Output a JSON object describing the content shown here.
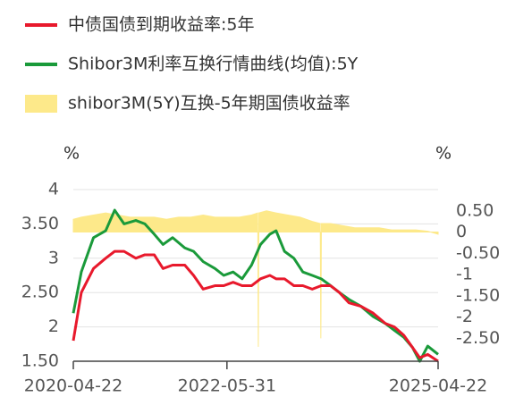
{
  "chart_data": {
    "type": "line",
    "xlim": [
      "2020-04-22",
      "2025-04-22"
    ],
    "xticks": [
      "2020-04-22",
      "2022-05-31",
      "2025-04-22"
    ],
    "ylabel": "%",
    "y2label": "%",
    "ylim": [
      1.5,
      4
    ],
    "yticks": [
      4,
      {
        "value": 3.5,
        "label": "3.50"
      },
      3,
      {
        "value": 2.5,
        "label": "2.50"
      },
      2,
      {
        "value": 1.5,
        "label": "1.50"
      }
    ],
    "y2lim": [
      -3.04,
      1.0
    ],
    "y2ticks": [
      {
        "value": 0.5,
        "label": "0.50"
      },
      0,
      {
        "value": -0.5,
        "label": "-0.50"
      },
      -1,
      {
        "value": -1.5,
        "label": "-1.50"
      },
      -2,
      {
        "value": -2.5,
        "label": "-2.50"
      }
    ],
    "grid": true,
    "series": [
      {
        "name": "shibor3M(5Y)互换-5年期国债收益率",
        "color": "#fde98a",
        "kind": "area",
        "axis": "y2",
        "x": [
          "2020-04-22",
          "2020-06-01",
          "2020-08-01",
          "2020-10-01",
          "2020-12-01",
          "2021-02-01",
          "2021-04-01",
          "2021-06-01",
          "2021-08-01",
          "2021-10-01",
          "2021-12-01",
          "2022-02-01",
          "2022-04-01",
          "2022-06-01",
          "2022-08-01",
          "2022-10-01",
          "2022-11-01",
          "2022-11-04",
          "2022-11-07",
          "2022-12-15",
          "2023-02-01",
          "2023-04-01",
          "2023-06-01",
          "2023-08-01",
          "2023-09-10",
          "2023-09-13",
          "2023-09-16",
          "2023-11-01",
          "2024-01-01",
          "2024-03-01",
          "2024-05-01",
          "2024-07-01",
          "2024-09-01",
          "2024-11-01",
          "2025-01-01",
          "2025-03-01",
          "2025-04-22"
        ],
        "values": [
          0.3,
          0.35,
          0.4,
          0.45,
          0.4,
          0.35,
          0.35,
          0.35,
          0.3,
          0.35,
          0.35,
          0.4,
          0.35,
          0.35,
          0.35,
          0.4,
          0.45,
          -2.7,
          0.45,
          0.5,
          0.45,
          0.4,
          0.35,
          0.25,
          0.2,
          -2.5,
          0.2,
          0.2,
          0.15,
          0.1,
          0.1,
          0.1,
          0.05,
          0.05,
          0.05,
          0.02,
          -0.05
        ]
      },
      {
        "name": "Shibor3M利率互换行情曲线(均值):5Y",
        "color": "#1a9a3a",
        "kind": "line",
        "axis": "y",
        "x": [
          "2020-04-22",
          "2020-06-01",
          "2020-08-01",
          "2020-10-01",
          "2020-11-15",
          "2021-01-01",
          "2021-03-01",
          "2021-04-15",
          "2021-06-01",
          "2021-07-15",
          "2021-09-01",
          "2021-11-01",
          "2021-12-15",
          "2022-02-01",
          "2022-04-01",
          "2022-05-15",
          "2022-07-01",
          "2022-08-15",
          "2022-10-01",
          "2022-11-15",
          "2023-01-01",
          "2023-02-01",
          "2023-03-15",
          "2023-05-01",
          "2023-06-15",
          "2023-08-01",
          "2023-09-15",
          "2023-11-01",
          "2023-12-15",
          "2024-02-01",
          "2024-04-01",
          "2024-06-01",
          "2024-08-01",
          "2024-09-15",
          "2024-11-01",
          "2024-12-15",
          "2025-01-20",
          "2025-03-01",
          "2025-04-22"
        ],
        "values": [
          2.2,
          2.8,
          3.3,
          3.4,
          3.7,
          3.5,
          3.55,
          3.5,
          3.35,
          3.2,
          3.3,
          3.15,
          3.1,
          2.95,
          2.85,
          2.75,
          2.8,
          2.7,
          2.9,
          3.2,
          3.35,
          3.4,
          3.1,
          3.0,
          2.8,
          2.75,
          2.7,
          2.6,
          2.5,
          2.4,
          2.3,
          2.15,
          2.05,
          1.95,
          1.85,
          1.7,
          1.5,
          1.72,
          1.6
        ]
      },
      {
        "name": "中债国债到期收益率:5年",
        "color": "#e8192c",
        "kind": "line",
        "axis": "y",
        "x": [
          "2020-04-22",
          "2020-06-01",
          "2020-08-01",
          "2020-10-01",
          "2020-11-15",
          "2021-01-01",
          "2021-03-01",
          "2021-04-15",
          "2021-06-01",
          "2021-07-15",
          "2021-09-01",
          "2021-11-01",
          "2021-12-15",
          "2022-02-01",
          "2022-04-01",
          "2022-05-15",
          "2022-07-01",
          "2022-08-15",
          "2022-10-01",
          "2022-11-15",
          "2023-01-01",
          "2023-02-01",
          "2023-03-15",
          "2023-05-01",
          "2023-06-15",
          "2023-08-01",
          "2023-09-15",
          "2023-11-01",
          "2023-12-15",
          "2024-02-01",
          "2024-04-01",
          "2024-06-01",
          "2024-08-01",
          "2024-09-15",
          "2024-11-01",
          "2024-12-15",
          "2025-01-20",
          "2025-03-01",
          "2025-04-22"
        ],
        "values": [
          1.8,
          2.5,
          2.85,
          3.0,
          3.1,
          3.1,
          3.0,
          3.05,
          3.05,
          2.85,
          2.9,
          2.9,
          2.75,
          2.55,
          2.6,
          2.6,
          2.65,
          2.6,
          2.6,
          2.7,
          2.75,
          2.7,
          2.7,
          2.6,
          2.6,
          2.55,
          2.6,
          2.6,
          2.5,
          2.35,
          2.3,
          2.2,
          2.05,
          2.0,
          1.88,
          1.7,
          1.55,
          1.6,
          1.5
        ]
      }
    ]
  }
}
